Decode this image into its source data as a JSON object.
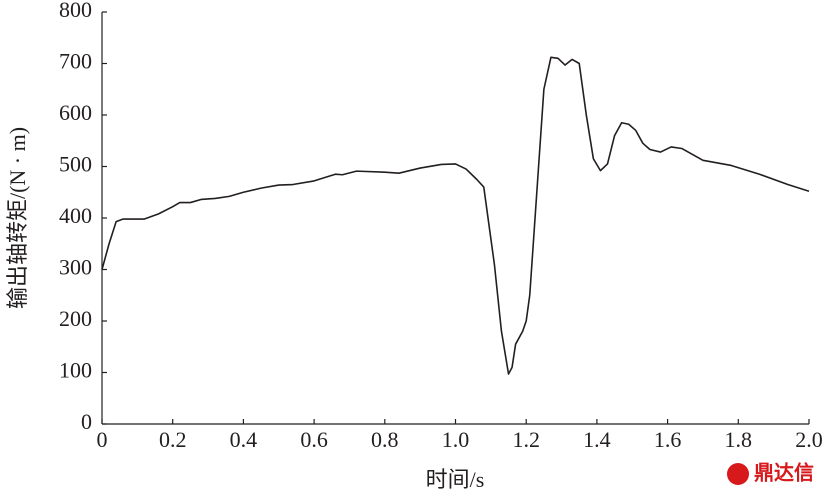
{
  "chart_data": {
    "type": "line",
    "x_label": "时间/s",
    "y_label": "输出轴转矩/(N · m)",
    "watermark": "鼎达信",
    "x": [
      0,
      0.02,
      0.04,
      0.06,
      0.12,
      0.16,
      0.2,
      0.22,
      0.25,
      0.28,
      0.32,
      0.36,
      0.4,
      0.45,
      0.5,
      0.54,
      0.6,
      0.66,
      0.68,
      0.72,
      0.8,
      0.84,
      0.9,
      0.96,
      1.0,
      1.03,
      1.06,
      1.08,
      1.11,
      1.13,
      1.15,
      1.16,
      1.17,
      1.19,
      1.2,
      1.21,
      1.23,
      1.25,
      1.27,
      1.29,
      1.31,
      1.33,
      1.35,
      1.37,
      1.39,
      1.41,
      1.43,
      1.45,
      1.47,
      1.49,
      1.51,
      1.53,
      1.55,
      1.58,
      1.61,
      1.64,
      1.7,
      1.78,
      1.86,
      1.94,
      2.0
    ],
    "series": [
      {
        "color": "#231f20",
        "values": [
          300,
          350,
          393,
          398,
          398,
          408,
          422,
          430,
          430,
          436,
          438,
          442,
          450,
          458,
          464,
          465,
          472,
          485,
          484,
          491,
          489,
          487,
          497,
          504,
          505,
          495,
          475,
          460,
          310,
          180,
          97,
          110,
          155,
          180,
          200,
          250,
          450,
          650,
          712,
          710,
          697,
          708,
          700,
          600,
          515,
          492,
          505,
          560,
          585,
          582,
          570,
          545,
          533,
          528,
          538,
          535,
          512,
          502,
          485,
          465,
          452
        ]
      }
    ],
    "xlim": [
      0,
      2
    ],
    "ylim": [
      0,
      800
    ],
    "xticks": [
      0,
      0.2,
      0.4,
      0.6,
      0.8,
      {
        "value": 1,
        "label": "1.0"
      },
      1.2,
      1.4,
      1.6,
      1.8,
      {
        "value": 2,
        "label": "2.0"
      }
    ],
    "yticks": [
      0,
      100,
      200,
      300,
      400,
      500,
      600,
      700,
      800
    ],
    "grid": false
  }
}
